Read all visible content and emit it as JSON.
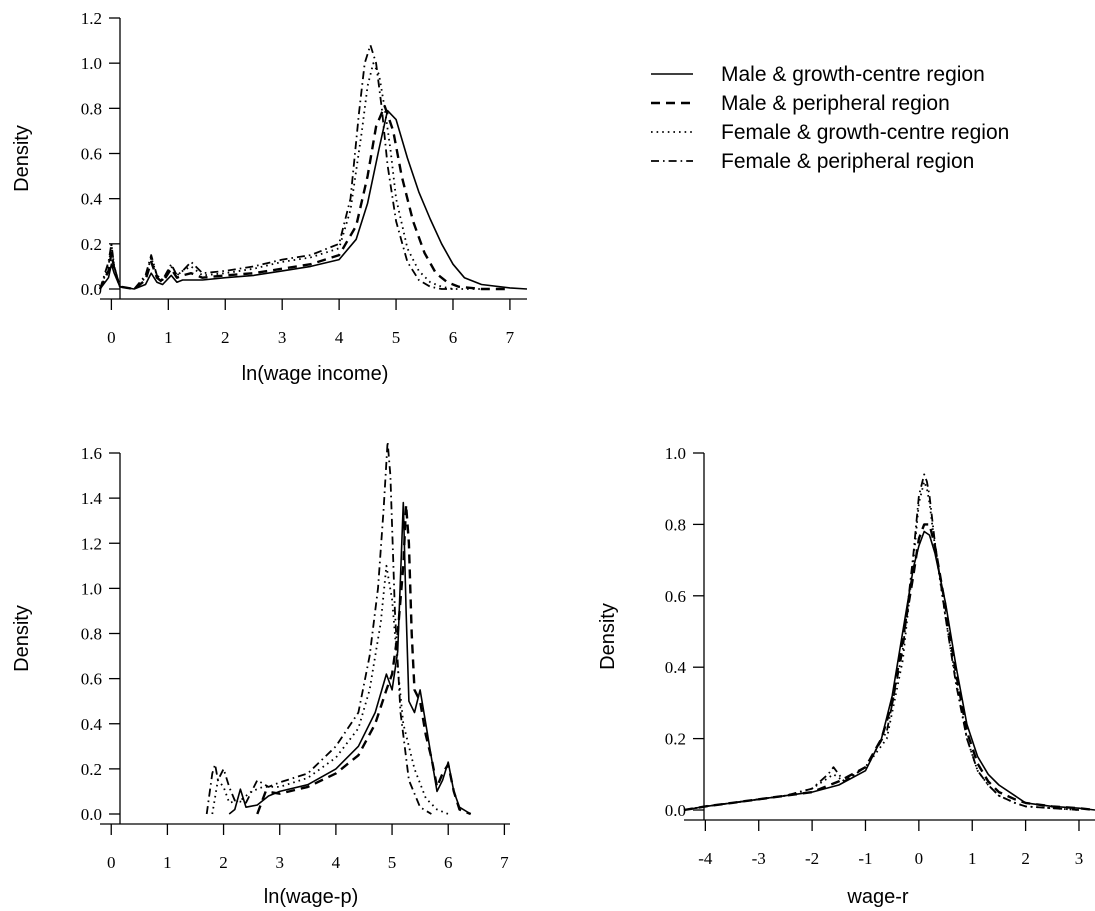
{
  "legend": {
    "entries": [
      {
        "label": "Male & growth-centre region",
        "style": "solid"
      },
      {
        "label": "Male & peripheral region",
        "style": "dashed"
      },
      {
        "label": "Female & growth-centre region",
        "style": "dotted"
      },
      {
        "label": "Female & peripheral region",
        "style": "dashdot"
      }
    ]
  },
  "chart_data": [
    {
      "type": "line",
      "title": "",
      "xlabel": "ln(wage income)",
      "ylabel": "Density",
      "xlim": [
        -0.2,
        7.3
      ],
      "ylim": [
        0,
        1.2
      ],
      "xticks": [
        0,
        1,
        2,
        3,
        4,
        5,
        6,
        7
      ],
      "yticks": [
        "0.0",
        "0.2",
        "0.4",
        "0.6",
        "0.8",
        "1.0",
        "1.2"
      ],
      "grid": false,
      "series": [
        {
          "name": "Male & growth-centre region",
          "style": "solid",
          "x": [
            -0.2,
            -0.05,
            0.0,
            0.05,
            0.15,
            0.4,
            0.6,
            0.7,
            0.8,
            0.9,
            1.05,
            1.15,
            1.25,
            1.4,
            1.6,
            2.0,
            2.5,
            3.0,
            3.5,
            4.0,
            4.3,
            4.5,
            4.7,
            4.85,
            5.0,
            5.2,
            5.4,
            5.6,
            5.8,
            6.0,
            6.2,
            6.5,
            7.0,
            7.3
          ],
          "y": [
            0.0,
            0.05,
            0.11,
            0.07,
            0.01,
            0.0,
            0.02,
            0.07,
            0.03,
            0.02,
            0.06,
            0.03,
            0.04,
            0.04,
            0.04,
            0.05,
            0.06,
            0.08,
            0.1,
            0.13,
            0.22,
            0.38,
            0.62,
            0.79,
            0.75,
            0.58,
            0.43,
            0.31,
            0.2,
            0.11,
            0.05,
            0.02,
            0.005,
            0.0
          ]
        },
        {
          "name": "Male & peripheral region",
          "style": "dashed",
          "x": [
            -0.2,
            -0.05,
            0.0,
            0.05,
            0.15,
            0.4,
            0.6,
            0.7,
            0.8,
            0.9,
            1.05,
            1.15,
            1.25,
            1.4,
            1.6,
            2.0,
            2.5,
            3.0,
            3.5,
            4.0,
            4.3,
            4.5,
            4.65,
            4.8,
            4.95,
            5.1,
            5.3,
            5.5,
            5.7,
            5.9,
            6.1,
            6.5,
            7.0
          ],
          "y": [
            0.0,
            0.08,
            0.16,
            0.09,
            0.01,
            0.0,
            0.04,
            0.12,
            0.05,
            0.03,
            0.09,
            0.05,
            0.06,
            0.07,
            0.05,
            0.06,
            0.07,
            0.09,
            0.11,
            0.15,
            0.28,
            0.5,
            0.72,
            0.81,
            0.7,
            0.5,
            0.3,
            0.16,
            0.07,
            0.03,
            0.01,
            0.0,
            0.0
          ]
        },
        {
          "name": "Female & growth-centre region",
          "style": "dotted",
          "x": [
            -0.2,
            -0.05,
            0.0,
            0.05,
            0.15,
            0.4,
            0.6,
            0.7,
            0.8,
            0.9,
            1.05,
            1.15,
            1.25,
            1.4,
            1.6,
            2.0,
            2.5,
            3.0,
            3.5,
            4.0,
            4.2,
            4.4,
            4.5,
            4.6,
            4.7,
            4.8,
            4.9,
            5.0,
            5.2,
            5.4,
            5.6,
            5.8,
            6.0,
            6.5
          ],
          "y": [
            0.0,
            0.1,
            0.2,
            0.1,
            0.01,
            0.0,
            0.05,
            0.14,
            0.06,
            0.04,
            0.1,
            0.06,
            0.08,
            0.1,
            0.06,
            0.07,
            0.09,
            0.12,
            0.14,
            0.18,
            0.35,
            0.7,
            0.9,
            1.0,
            0.95,
            0.8,
            0.62,
            0.4,
            0.18,
            0.08,
            0.03,
            0.01,
            0.0,
            0.0
          ]
        },
        {
          "name": "Female & peripheral region",
          "style": "dashdot",
          "x": [
            -0.2,
            -0.05,
            0.0,
            0.05,
            0.15,
            0.4,
            0.6,
            0.7,
            0.8,
            0.9,
            1.05,
            1.15,
            1.25,
            1.4,
            1.6,
            2.0,
            2.5,
            3.0,
            3.5,
            4.0,
            4.2,
            4.35,
            4.45,
            4.55,
            4.65,
            4.75,
            4.85,
            5.0,
            5.2,
            5.4,
            5.6,
            5.8,
            6.0
          ],
          "y": [
            0.0,
            0.12,
            0.2,
            0.1,
            0.01,
            0.0,
            0.06,
            0.15,
            0.06,
            0.04,
            0.11,
            0.06,
            0.08,
            0.12,
            0.07,
            0.08,
            0.1,
            0.13,
            0.15,
            0.2,
            0.4,
            0.78,
            1.0,
            1.08,
            1.0,
            0.8,
            0.55,
            0.3,
            0.12,
            0.04,
            0.01,
            0.0,
            0.0
          ]
        }
      ]
    },
    {
      "type": "line",
      "title": "",
      "xlabel": "ln(wage-p)",
      "ylabel": "Density",
      "xlim": [
        -0.2,
        7.1
      ],
      "ylim": [
        0,
        1.6
      ],
      "xticks": [
        0,
        1,
        2,
        3,
        4,
        5,
        6,
        7
      ],
      "yticks": [
        "0.0",
        "0.2",
        "0.4",
        "0.6",
        "0.8",
        "1.0",
        "1.2",
        "1.4",
        "1.6"
      ],
      "grid": false,
      "series": [
        {
          "name": "Male & growth-centre region",
          "style": "solid",
          "x": [
            2.1,
            2.2,
            2.3,
            2.4,
            2.6,
            2.8,
            3.0,
            3.5,
            4.0,
            4.4,
            4.7,
            4.9,
            5.0,
            5.1,
            5.15,
            5.2,
            5.25,
            5.3,
            5.4,
            5.5,
            5.6,
            5.7,
            5.8,
            5.9,
            6.0,
            6.1,
            6.2,
            6.4
          ],
          "y": [
            0.0,
            0.02,
            0.11,
            0.03,
            0.04,
            0.08,
            0.1,
            0.13,
            0.2,
            0.3,
            0.45,
            0.62,
            0.55,
            0.72,
            1.05,
            1.38,
            0.9,
            0.5,
            0.45,
            0.55,
            0.4,
            0.25,
            0.1,
            0.15,
            0.23,
            0.1,
            0.03,
            0.0
          ]
        },
        {
          "name": "Male & peripheral region",
          "style": "dashed",
          "x": [
            2.6,
            2.75,
            3.0,
            3.5,
            4.0,
            4.4,
            4.7,
            4.9,
            5.0,
            5.1,
            5.2,
            5.25,
            5.3,
            5.35,
            5.4,
            5.5,
            5.6,
            5.7,
            5.8,
            5.9,
            6.0,
            6.1,
            6.2,
            6.4
          ],
          "y": [
            0.0,
            0.1,
            0.09,
            0.12,
            0.18,
            0.26,
            0.4,
            0.55,
            0.62,
            0.8,
            1.1,
            1.37,
            1.2,
            0.8,
            0.55,
            0.5,
            0.35,
            0.25,
            0.12,
            0.18,
            0.22,
            0.1,
            0.02,
            0.0
          ]
        },
        {
          "name": "Female & growth-centre region",
          "style": "dotted",
          "x": [
            1.8,
            1.9,
            2.0,
            2.1,
            2.3,
            2.5,
            2.7,
            3.0,
            3.5,
            4.0,
            4.4,
            4.6,
            4.8,
            4.9,
            5.0,
            5.1,
            5.2,
            5.4,
            5.6,
            5.8,
            6.0
          ],
          "y": [
            0.0,
            0.15,
            0.12,
            0.05,
            0.06,
            0.1,
            0.12,
            0.12,
            0.16,
            0.25,
            0.38,
            0.55,
            0.85,
            1.1,
            0.95,
            0.65,
            0.4,
            0.2,
            0.07,
            0.02,
            0.0
          ]
        },
        {
          "name": "Female & peripheral region",
          "style": "dashdot",
          "x": [
            1.7,
            1.8,
            1.85,
            1.9,
            2.0,
            2.1,
            2.2,
            2.4,
            2.6,
            2.8,
            3.0,
            3.5,
            4.0,
            4.4,
            4.6,
            4.75,
            4.85,
            4.92,
            4.97,
            5.05,
            5.15,
            5.3,
            5.5,
            5.7
          ],
          "y": [
            0.0,
            0.18,
            0.22,
            0.15,
            0.2,
            0.12,
            0.06,
            0.05,
            0.15,
            0.12,
            0.14,
            0.18,
            0.3,
            0.45,
            0.7,
            1.0,
            1.35,
            1.65,
            1.5,
            0.9,
            0.45,
            0.15,
            0.03,
            0.0
          ]
        }
      ]
    },
    {
      "type": "line",
      "title": "",
      "xlabel": "wage-r",
      "ylabel": "Density",
      "xlim": [
        -4.4,
        3.3
      ],
      "ylim": [
        0,
        1.0
      ],
      "xticks": [
        -4,
        -3,
        -2,
        -1,
        0,
        1,
        2,
        3
      ],
      "yticks": [
        "0.0",
        "0.2",
        "0.4",
        "0.6",
        "0.8",
        "1.0"
      ],
      "grid": false,
      "series": [
        {
          "name": "Male & growth-centre region",
          "style": "solid",
          "x": [
            -4.4,
            -4.0,
            -3.5,
            -3.0,
            -2.5,
            -2.0,
            -1.5,
            -1.0,
            -0.7,
            -0.5,
            -0.3,
            -0.1,
            0.0,
            0.1,
            0.2,
            0.3,
            0.5,
            0.7,
            0.9,
            1.1,
            1.3,
            1.5,
            1.8,
            2.0,
            2.5,
            3.0,
            3.3
          ],
          "y": [
            0.0,
            0.01,
            0.02,
            0.03,
            0.04,
            0.05,
            0.07,
            0.11,
            0.2,
            0.32,
            0.5,
            0.68,
            0.74,
            0.78,
            0.77,
            0.72,
            0.58,
            0.4,
            0.24,
            0.15,
            0.1,
            0.07,
            0.04,
            0.02,
            0.01,
            0.005,
            0.0
          ]
        },
        {
          "name": "Male & peripheral region",
          "style": "dashed",
          "x": [
            -4.4,
            -4.0,
            -3.5,
            -3.0,
            -2.5,
            -2.0,
            -1.5,
            -1.0,
            -0.7,
            -0.5,
            -0.3,
            -0.1,
            0.0,
            0.1,
            0.2,
            0.3,
            0.5,
            0.7,
            0.9,
            1.1,
            1.3,
            1.5,
            1.8,
            2.0,
            2.5,
            3.0,
            3.3
          ],
          "y": [
            0.0,
            0.01,
            0.02,
            0.03,
            0.04,
            0.05,
            0.08,
            0.12,
            0.2,
            0.3,
            0.48,
            0.66,
            0.76,
            0.8,
            0.8,
            0.74,
            0.57,
            0.38,
            0.22,
            0.13,
            0.08,
            0.05,
            0.03,
            0.02,
            0.01,
            0.005,
            0.0
          ]
        },
        {
          "name": "Female & growth-centre region",
          "style": "dotted",
          "x": [
            -4.4,
            -4.0,
            -3.5,
            -3.0,
            -2.5,
            -2.0,
            -1.6,
            -1.4,
            -1.0,
            -0.6,
            -0.3,
            -0.1,
            0.0,
            0.1,
            0.15,
            0.2,
            0.3,
            0.5,
            0.7,
            0.9,
            1.1,
            1.3,
            1.5,
            1.8,
            2.0,
            2.5,
            3.0
          ],
          "y": [
            0.0,
            0.01,
            0.02,
            0.03,
            0.04,
            0.06,
            0.1,
            0.08,
            0.12,
            0.2,
            0.42,
            0.7,
            0.86,
            0.92,
            0.9,
            0.86,
            0.74,
            0.54,
            0.36,
            0.2,
            0.11,
            0.07,
            0.04,
            0.02,
            0.01,
            0.005,
            0.0
          ]
        },
        {
          "name": "Female & peripheral region",
          "style": "dashdot",
          "x": [
            -4.4,
            -4.0,
            -3.5,
            -3.0,
            -2.5,
            -2.0,
            -1.7,
            -1.6,
            -1.4,
            -1.0,
            -0.6,
            -0.3,
            -0.1,
            0.0,
            0.1,
            0.15,
            0.2,
            0.3,
            0.5,
            0.7,
            0.9,
            1.1,
            1.3,
            1.5,
            1.8,
            2.0,
            2.5,
            3.0
          ],
          "y": [
            0.0,
            0.01,
            0.02,
            0.03,
            0.04,
            0.06,
            0.1,
            0.12,
            0.08,
            0.12,
            0.22,
            0.45,
            0.72,
            0.88,
            0.94,
            0.92,
            0.88,
            0.75,
            0.54,
            0.35,
            0.2,
            0.11,
            0.07,
            0.04,
            0.02,
            0.01,
            0.005,
            0.0
          ]
        }
      ]
    }
  ]
}
